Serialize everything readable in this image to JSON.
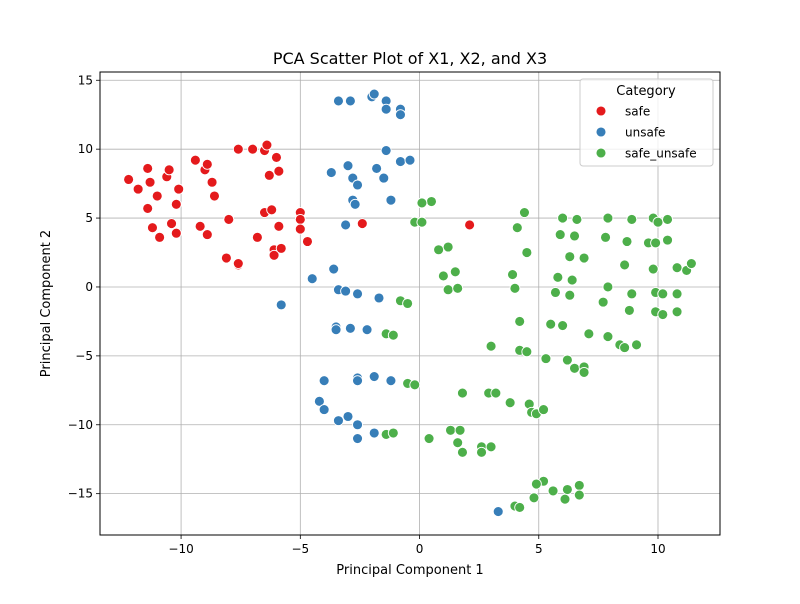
{
  "chart_data": {
    "type": "scatter",
    "title": "PCA Scatter Plot of X1, X2, and X3",
    "xlabel": "Principal Component 1",
    "ylabel": "Principal Component 2",
    "xlim": [
      -13.4,
      12.6
    ],
    "ylim": [
      -18,
      15.6
    ],
    "xticks": [
      -10,
      -5,
      0,
      5,
      10
    ],
    "yticks": [
      -15,
      -10,
      -5,
      0,
      5,
      10,
      15
    ],
    "grid": true,
    "legend": {
      "title": "Category",
      "placement": "top-right"
    },
    "series": [
      {
        "name": "safe",
        "color": "#e41a1c",
        "points": [
          [
            -12.2,
            7.8
          ],
          [
            -11.8,
            7.1
          ],
          [
            -11.4,
            8.6
          ],
          [
            -11.3,
            7.6
          ],
          [
            -11.4,
            5.7
          ],
          [
            -11.2,
            4.3
          ],
          [
            -11.0,
            6.6
          ],
          [
            -10.9,
            3.6
          ],
          [
            -10.6,
            8.0
          ],
          [
            -10.5,
            8.5
          ],
          [
            -10.4,
            4.6
          ],
          [
            -10.2,
            3.9
          ],
          [
            -10.2,
            6.0
          ],
          [
            -10.1,
            7.1
          ],
          [
            -9.4,
            9.2
          ],
          [
            -9.2,
            4.4
          ],
          [
            -9.0,
            8.5
          ],
          [
            -8.9,
            8.9
          ],
          [
            -8.9,
            3.8
          ],
          [
            -8.7,
            7.6
          ],
          [
            -8.6,
            6.6
          ],
          [
            -8.0,
            4.9
          ],
          [
            -8.1,
            2.1
          ],
          [
            -7.6,
            1.6
          ],
          [
            -7.6,
            1.7
          ],
          [
            -7.6,
            10.0
          ],
          [
            -7.0,
            10.0
          ],
          [
            -6.8,
            3.6
          ],
          [
            -6.5,
            9.9
          ],
          [
            -6.4,
            10.3
          ],
          [
            -6.3,
            8.1
          ],
          [
            -6.5,
            5.4
          ],
          [
            -6.2,
            5.6
          ],
          [
            -6.1,
            2.7
          ],
          [
            -6.1,
            2.3
          ],
          [
            -5.9,
            4.4
          ],
          [
            -6.0,
            9.4
          ],
          [
            -5.9,
            8.4
          ],
          [
            -5.8,
            2.8
          ],
          [
            -5.0,
            5.4
          ],
          [
            -5.0,
            4.9
          ],
          [
            -5.0,
            4.2
          ],
          [
            -4.7,
            3.3
          ],
          [
            -2.4,
            4.6
          ],
          [
            2.1,
            4.5
          ]
        ]
      },
      {
        "name": "unsafe",
        "color": "#377eb8",
        "points": [
          [
            -3.4,
            13.5
          ],
          [
            -2.9,
            13.5
          ],
          [
            -2.0,
            13.8
          ],
          [
            -1.9,
            14.0
          ],
          [
            -1.4,
            13.5
          ],
          [
            -1.4,
            12.9
          ],
          [
            -0.8,
            12.9
          ],
          [
            -0.8,
            12.5
          ],
          [
            -3.7,
            8.3
          ],
          [
            -3.0,
            8.8
          ],
          [
            -2.8,
            7.9
          ],
          [
            -2.6,
            7.4
          ],
          [
            -1.8,
            8.6
          ],
          [
            -1.5,
            7.9
          ],
          [
            -1.4,
            9.9
          ],
          [
            -0.8,
            9.1
          ],
          [
            -0.4,
            9.2
          ],
          [
            -1.2,
            6.3
          ],
          [
            -2.8,
            6.3
          ],
          [
            -2.7,
            6.0
          ],
          [
            -3.1,
            4.5
          ],
          [
            -4.5,
            0.6
          ],
          [
            -3.6,
            1.3
          ],
          [
            -5.8,
            -1.3
          ],
          [
            -3.4,
            -0.2
          ],
          [
            -3.1,
            -0.3
          ],
          [
            -2.6,
            -0.5
          ],
          [
            -1.7,
            -0.8
          ],
          [
            -3.5,
            -2.9
          ],
          [
            -3.5,
            -3.1
          ],
          [
            -2.9,
            -3.0
          ],
          [
            -2.2,
            -3.1
          ],
          [
            -4.0,
            -6.8
          ],
          [
            -2.6,
            -6.6
          ],
          [
            -2.6,
            -6.8
          ],
          [
            -1.9,
            -6.5
          ],
          [
            -1.2,
            -6.8
          ],
          [
            -4.2,
            -8.3
          ],
          [
            -4.0,
            -8.9
          ],
          [
            -3.4,
            -9.7
          ],
          [
            -3.0,
            -9.4
          ],
          [
            -2.6,
            -10.0
          ],
          [
            -2.6,
            -11.0
          ],
          [
            -1.9,
            -10.6
          ],
          [
            3.3,
            -16.3
          ]
        ]
      },
      {
        "name": "safe_unsafe",
        "color": "#4daf4a",
        "points": [
          [
            0.5,
            6.2
          ],
          [
            0.1,
            6.1
          ],
          [
            -0.2,
            4.7
          ],
          [
            0.1,
            4.7
          ],
          [
            0.8,
            2.7
          ],
          [
            1.2,
            2.9
          ],
          [
            1.0,
            0.8
          ],
          [
            1.5,
            1.1
          ],
          [
            1.2,
            -0.2
          ],
          [
            1.6,
            -0.1
          ],
          [
            -0.8,
            -1.0
          ],
          [
            -0.5,
            -1.2
          ],
          [
            -1.4,
            -3.4
          ],
          [
            -1.1,
            -3.5
          ],
          [
            -0.5,
            -7.0
          ],
          [
            -0.2,
            -7.1
          ],
          [
            -1.4,
            -10.7
          ],
          [
            -1.1,
            -10.6
          ],
          [
            0.4,
            -11.0
          ],
          [
            1.3,
            -10.4
          ],
          [
            1.7,
            -10.4
          ],
          [
            1.6,
            -11.3
          ],
          [
            1.8,
            -12.0
          ],
          [
            1.8,
            -7.7
          ],
          [
            2.6,
            -11.6
          ],
          [
            2.6,
            -12.0
          ],
          [
            2.9,
            -7.7
          ],
          [
            3.0,
            -11.6
          ],
          [
            3.0,
            -4.3
          ],
          [
            3.2,
            -7.7
          ],
          [
            3.8,
            -8.4
          ],
          [
            3.9,
            0.9
          ],
          [
            4.0,
            -0.1
          ],
          [
            4.1,
            4.3
          ],
          [
            4.2,
            -4.6
          ],
          [
            4.2,
            -2.5
          ],
          [
            4.4,
            5.4
          ],
          [
            4.5,
            2.5
          ],
          [
            4.5,
            -4.7
          ],
          [
            4.6,
            -8.5
          ],
          [
            4.7,
            -9.1
          ],
          [
            4.9,
            -9.2
          ],
          [
            5.2,
            -8.9
          ],
          [
            5.3,
            -5.2
          ],
          [
            5.5,
            -2.7
          ],
          [
            5.7,
            -0.4
          ],
          [
            5.8,
            0.7
          ],
          [
            5.9,
            3.8
          ],
          [
            6.0,
            5.0
          ],
          [
            6.0,
            -2.8
          ],
          [
            6.2,
            -5.3
          ],
          [
            6.3,
            -0.6
          ],
          [
            6.3,
            2.2
          ],
          [
            6.4,
            0.5
          ],
          [
            6.5,
            -5.9
          ],
          [
            6.5,
            3.7
          ],
          [
            6.6,
            4.9
          ],
          [
            6.9,
            2.1
          ],
          [
            6.9,
            -5.8
          ],
          [
            6.9,
            -6.2
          ],
          [
            7.1,
            -3.4
          ],
          [
            7.7,
            -1.1
          ],
          [
            7.8,
            3.6
          ],
          [
            7.9,
            5.0
          ],
          [
            7.9,
            0.0
          ],
          [
            7.9,
            -3.6
          ],
          [
            8.4,
            -4.2
          ],
          [
            8.6,
            -4.4
          ],
          [
            8.7,
            3.3
          ],
          [
            8.6,
            1.6
          ],
          [
            8.9,
            4.9
          ],
          [
            8.9,
            -0.5
          ],
          [
            8.8,
            -1.7
          ],
          [
            9.1,
            -4.2
          ],
          [
            9.6,
            3.2
          ],
          [
            9.8,
            5.0
          ],
          [
            9.9,
            3.2
          ],
          [
            9.8,
            1.3
          ],
          [
            9.9,
            -0.4
          ],
          [
            9.9,
            -1.8
          ],
          [
            10.0,
            4.7
          ],
          [
            10.2,
            -0.5
          ],
          [
            10.2,
            -2.0
          ],
          [
            10.4,
            4.9
          ],
          [
            10.4,
            3.4
          ],
          [
            10.8,
            1.4
          ],
          [
            10.8,
            -0.5
          ],
          [
            10.8,
            -1.8
          ],
          [
            11.2,
            1.2
          ],
          [
            11.4,
            1.7
          ],
          [
            5.2,
            -14.1
          ],
          [
            4.9,
            -14.3
          ],
          [
            5.6,
            -14.8
          ],
          [
            6.2,
            -14.7
          ],
          [
            6.7,
            -14.4
          ],
          [
            6.7,
            -15.1
          ],
          [
            6.1,
            -15.4
          ],
          [
            4.8,
            -15.3
          ],
          [
            4.0,
            -15.9
          ],
          [
            4.2,
            -16.0
          ]
        ]
      }
    ]
  }
}
